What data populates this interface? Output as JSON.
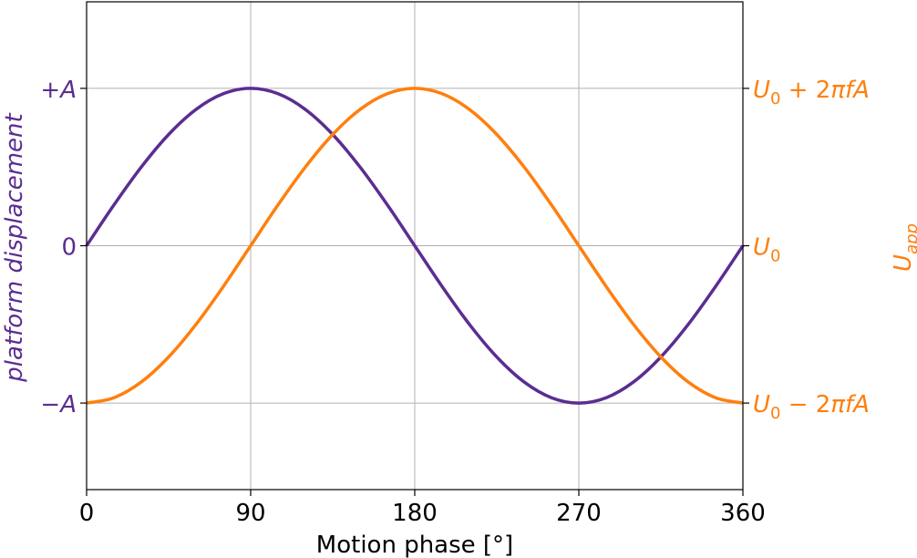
{
  "chart_data": {
    "type": "line",
    "xlabel": "Motion phase [°]",
    "xlim": [
      0,
      360
    ],
    "x_ticks": [
      0,
      90,
      180,
      270,
      360
    ],
    "x_tick_labels": [
      "0",
      "90",
      "180",
      "270",
      "360"
    ],
    "grid": true,
    "left_axis": {
      "label": "platform displacement",
      "color": "#5b2d91",
      "ylim": [
        -1.55,
        1.55
      ],
      "ticks": [
        -1,
        0,
        1
      ],
      "tick_labels": [
        "−A",
        "0",
        "+A"
      ]
    },
    "right_axis": {
      "label": "U_app",
      "label_main": "U",
      "label_sub": "app",
      "color": "#ff7f0e",
      "ylim": [
        -1.55,
        1.55
      ],
      "ticks": [
        -1,
        0,
        1
      ],
      "tick_labels": [
        {
          "main": "U",
          "sub": "0",
          "rest": " − 2πfA"
        },
        {
          "main": "U",
          "sub": "0",
          "rest": ""
        },
        {
          "main": "U",
          "sub": "0",
          "rest": " + 2πfA"
        }
      ]
    },
    "series": [
      {
        "axis": "left",
        "color": "#5b2d91",
        "x": [
          0,
          15,
          30,
          45,
          60,
          75,
          90,
          105,
          120,
          135,
          150,
          165,
          180,
          195,
          210,
          225,
          240,
          255,
          270,
          285,
          300,
          315,
          330,
          345,
          360
        ],
        "y": [
          0,
          0.259,
          0.5,
          0.707,
          0.866,
          0.966,
          1,
          0.966,
          0.866,
          0.707,
          0.5,
          0.259,
          0,
          -0.259,
          -0.5,
          -0.707,
          -0.866,
          -0.966,
          -1,
          -0.966,
          -0.866,
          -0.707,
          -0.5,
          -0.259,
          0
        ]
      },
      {
        "axis": "right",
        "color": "#ff7f0e",
        "x": [
          0,
          15,
          30,
          45,
          60,
          75,
          90,
          105,
          120,
          135,
          150,
          165,
          180,
          195,
          210,
          225,
          240,
          255,
          270,
          285,
          300,
          315,
          330,
          345,
          360
        ],
        "y": [
          -1,
          -0.966,
          -0.866,
          -0.707,
          -0.5,
          -0.259,
          0,
          0.259,
          0.5,
          0.707,
          0.866,
          0.966,
          1,
          0.966,
          0.866,
          0.707,
          0.5,
          0.259,
          0,
          -0.259,
          -0.5,
          -0.707,
          -0.866,
          -0.966,
          -1
        ]
      }
    ]
  }
}
